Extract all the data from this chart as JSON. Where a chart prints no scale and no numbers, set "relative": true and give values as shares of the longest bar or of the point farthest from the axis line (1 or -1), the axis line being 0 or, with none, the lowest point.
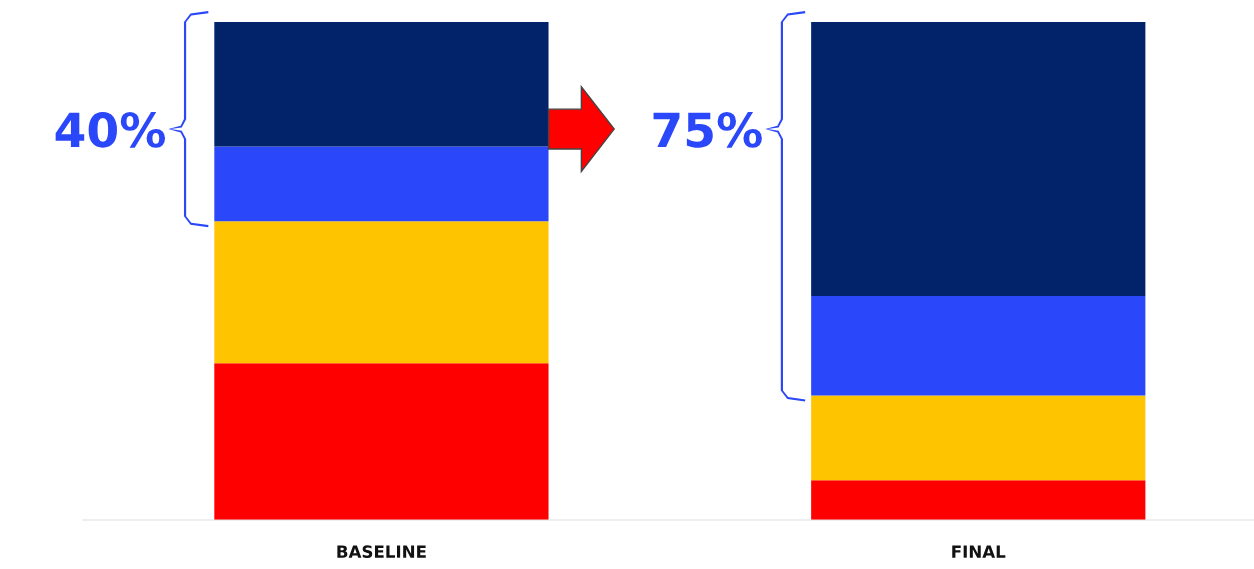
{
  "chart_data": {
    "type": "bar",
    "stacked": true,
    "relative": true,
    "categories": [
      "BASELINE",
      "FINAL"
    ],
    "series": [
      {
        "color": "#ff0000",
        "values": [
          0.315,
          0.08
        ]
      },
      {
        "color": "#ffc400",
        "values": [
          0.285,
          0.17
        ]
      },
      {
        "color": "#2b47fa",
        "values": [
          0.15,
          0.2
        ]
      },
      {
        "color": "#022369",
        "values": [
          0.25,
          0.55
        ]
      }
    ],
    "annotations": [
      "40%",
      "75%"
    ]
  }
}
